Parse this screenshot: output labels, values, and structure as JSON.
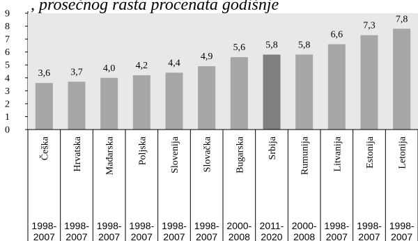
{
  "chart_data": {
    "type": "bar",
    "title": ", prosečnog rasta procenata godišnje",
    "categories": [
      "Češka",
      "Hrvatska",
      "Mađarska",
      "Poljska",
      "Slovenija",
      "Slovačka",
      "Bugarska",
      "Srbija",
      "Rumunija",
      "Litvanija",
      "Estonija",
      "Letonija"
    ],
    "periods": [
      [
        "1998-",
        "2007"
      ],
      [
        "1998-",
        "2007"
      ],
      [
        "1998-",
        "2007"
      ],
      [
        "1998-",
        "2007"
      ],
      [
        "1998-",
        "2007"
      ],
      [
        "1998-",
        "2007"
      ],
      [
        "2000-",
        "2008"
      ],
      [
        "2011-",
        "2020"
      ],
      [
        "2000-",
        "2008"
      ],
      [
        "1998-",
        "2007"
      ],
      [
        "1998-",
        "2007"
      ],
      [
        "1998-",
        "2007"
      ]
    ],
    "values": [
      3.6,
      3.7,
      4.0,
      4.2,
      4.4,
      4.9,
      5.6,
      5.8,
      5.8,
      6.6,
      7.3,
      7.8
    ],
    "value_labels": [
      "3,6",
      "3,7",
      "4,0",
      "4,2",
      "4,4",
      "4,9",
      "5,6",
      "5,8",
      "5,8",
      "6,6",
      "7,3",
      "7,8"
    ],
    "highlight_index": 7,
    "yticks": [
      0,
      1,
      2,
      3,
      4,
      5,
      6,
      7,
      8,
      9
    ],
    "ylim": [
      0,
      9
    ],
    "xlabel": "",
    "ylabel": "",
    "grid": false,
    "legend": "none",
    "colors": {
      "bar": "#a6a6a6",
      "highlight": "#7f7f7f",
      "bg_band": "#e8e8e8",
      "axis": "#000000"
    }
  }
}
